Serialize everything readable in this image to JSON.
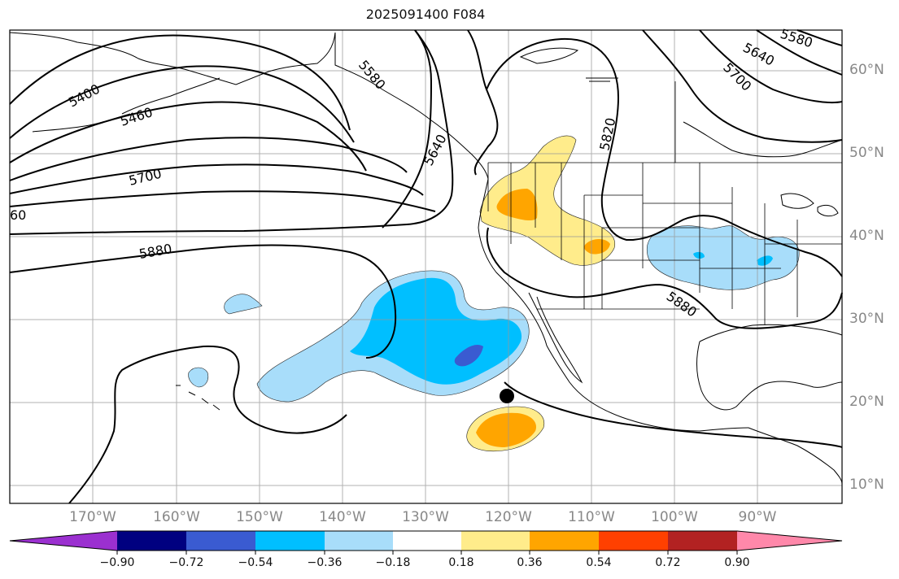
{
  "title": "2025091400 F084",
  "lon_labels": [
    "170°W",
    "160°W",
    "150°W",
    "140°W",
    "130°W",
    "120°W",
    "110°W",
    "100°W",
    "90°W"
  ],
  "lat_labels": [
    "60°N",
    "50°N",
    "40°N",
    "30°N",
    "20°N",
    "10°N"
  ],
  "contour_labels": [
    "5400",
    "5460",
    "5580",
    "5580",
    "5640",
    "5640",
    "5700",
    "5700",
    "5820",
    "5880",
    "5880",
    "60"
  ],
  "colorbar": {
    "ticks": [
      "−0.90",
      "−0.72",
      "−0.54",
      "−0.36",
      "−0.18",
      "0.18",
      "0.36",
      "0.54",
      "0.72",
      "0.90"
    ],
    "colors": [
      "#9b30d0",
      "#000080",
      "#3a5bd1",
      "#00bfff",
      "#a8ddfa",
      "#ffffff",
      "#ffec8b",
      "#ffa500",
      "#ff4000",
      "#b22222",
      "#ff88aa"
    ]
  },
  "colors": {
    "contour": "#000000",
    "grid": "#999999",
    "coast": "#000000"
  },
  "marker": {
    "lon": -120.3,
    "lat": 20.8,
    "color": "#000000"
  },
  "map_extent": {
    "lon_min": -180,
    "lon_max": -80.5,
    "lat_min": 8,
    "lat_max": 65
  }
}
